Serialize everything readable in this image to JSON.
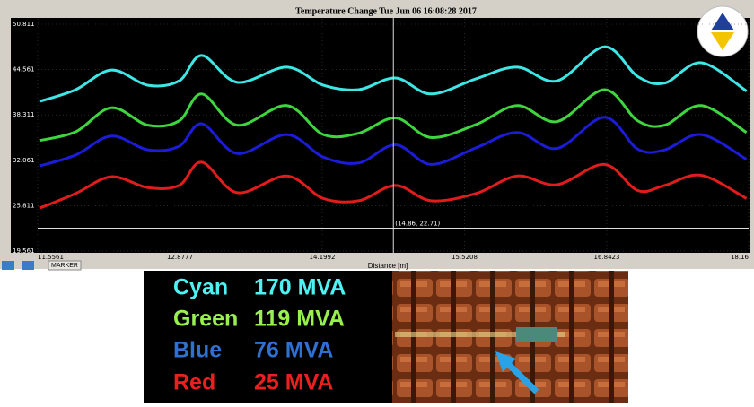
{
  "chart_data": {
    "type": "line",
    "title": "Temperature Change Tue Jun 06 16:08:28 2017",
    "x_label": "Distance [m]",
    "x": [
      11.58,
      11.91,
      12.24,
      12.58,
      12.87,
      13.08,
      13.41,
      13.87,
      14.21,
      14.54,
      14.88,
      15.21,
      15.63,
      16.01,
      16.38,
      16.82,
      17.13,
      17.38,
      17.72,
      18.14
    ],
    "series": [
      {
        "color": "#3ee6e6",
        "values": [
          40.2,
          41.8,
          44.5,
          42.4,
          43.0,
          46.5,
          42.8,
          44.9,
          42.4,
          41.8,
          43.4,
          41.2,
          43.3,
          44.9,
          43.0,
          47.7,
          43.6,
          42.7,
          45.5,
          41.6
        ]
      },
      {
        "color": "#3ed63e",
        "values": [
          34.8,
          36.0,
          39.3,
          36.9,
          37.5,
          41.2,
          36.9,
          39.6,
          35.6,
          35.8,
          37.9,
          35.2,
          37.0,
          39.6,
          37.4,
          41.8,
          37.5,
          36.9,
          39.6,
          35.9
        ]
      },
      {
        "color": "#1c1cd8",
        "values": [
          31.3,
          32.8,
          35.4,
          33.5,
          34.0,
          37.1,
          33.0,
          35.6,
          32.5,
          31.7,
          34.2,
          31.5,
          33.8,
          35.9,
          33.7,
          38.0,
          33.6,
          33.5,
          35.6,
          32.2
        ]
      },
      {
        "color": "#e01c1c",
        "values": [
          25.5,
          27.5,
          29.8,
          28.3,
          28.6,
          31.8,
          27.6,
          29.9,
          26.8,
          26.5,
          28.6,
          26.5,
          27.5,
          29.9,
          28.7,
          31.5,
          27.9,
          28.6,
          30.0,
          26.8
        ]
      }
    ],
    "xlim": [
      11.5561,
      18.16
    ],
    "xticks": [
      11.5561,
      12.8777,
      14.1992,
      15.5208,
      16.8423,
      18.16
    ],
    "ylim": [
      19.561,
      50.811
    ],
    "yticks": [
      19.561,
      25.811,
      32.061,
      38.311,
      44.561,
      50.811
    ],
    "grid": true,
    "annotations": [
      {
        "text": "(14.86, 22.71)",
        "x": 14.86,
        "y": 22.71
      }
    ]
  },
  "toolbar": {
    "button": "MARKER"
  },
  "load_panel": {
    "rows": [
      {
        "name": "Cyan",
        "load": "170 MVA",
        "color": "#4ff2f2"
      },
      {
        "name": "Green",
        "load": "119 MVA",
        "color": "#98f04e"
      },
      {
        "name": "Blue",
        "load": "76 MVA",
        "color": "#2f70d0"
      },
      {
        "name": "Red",
        "load": "25 MVA",
        "color": "#ea2020"
      }
    ]
  }
}
